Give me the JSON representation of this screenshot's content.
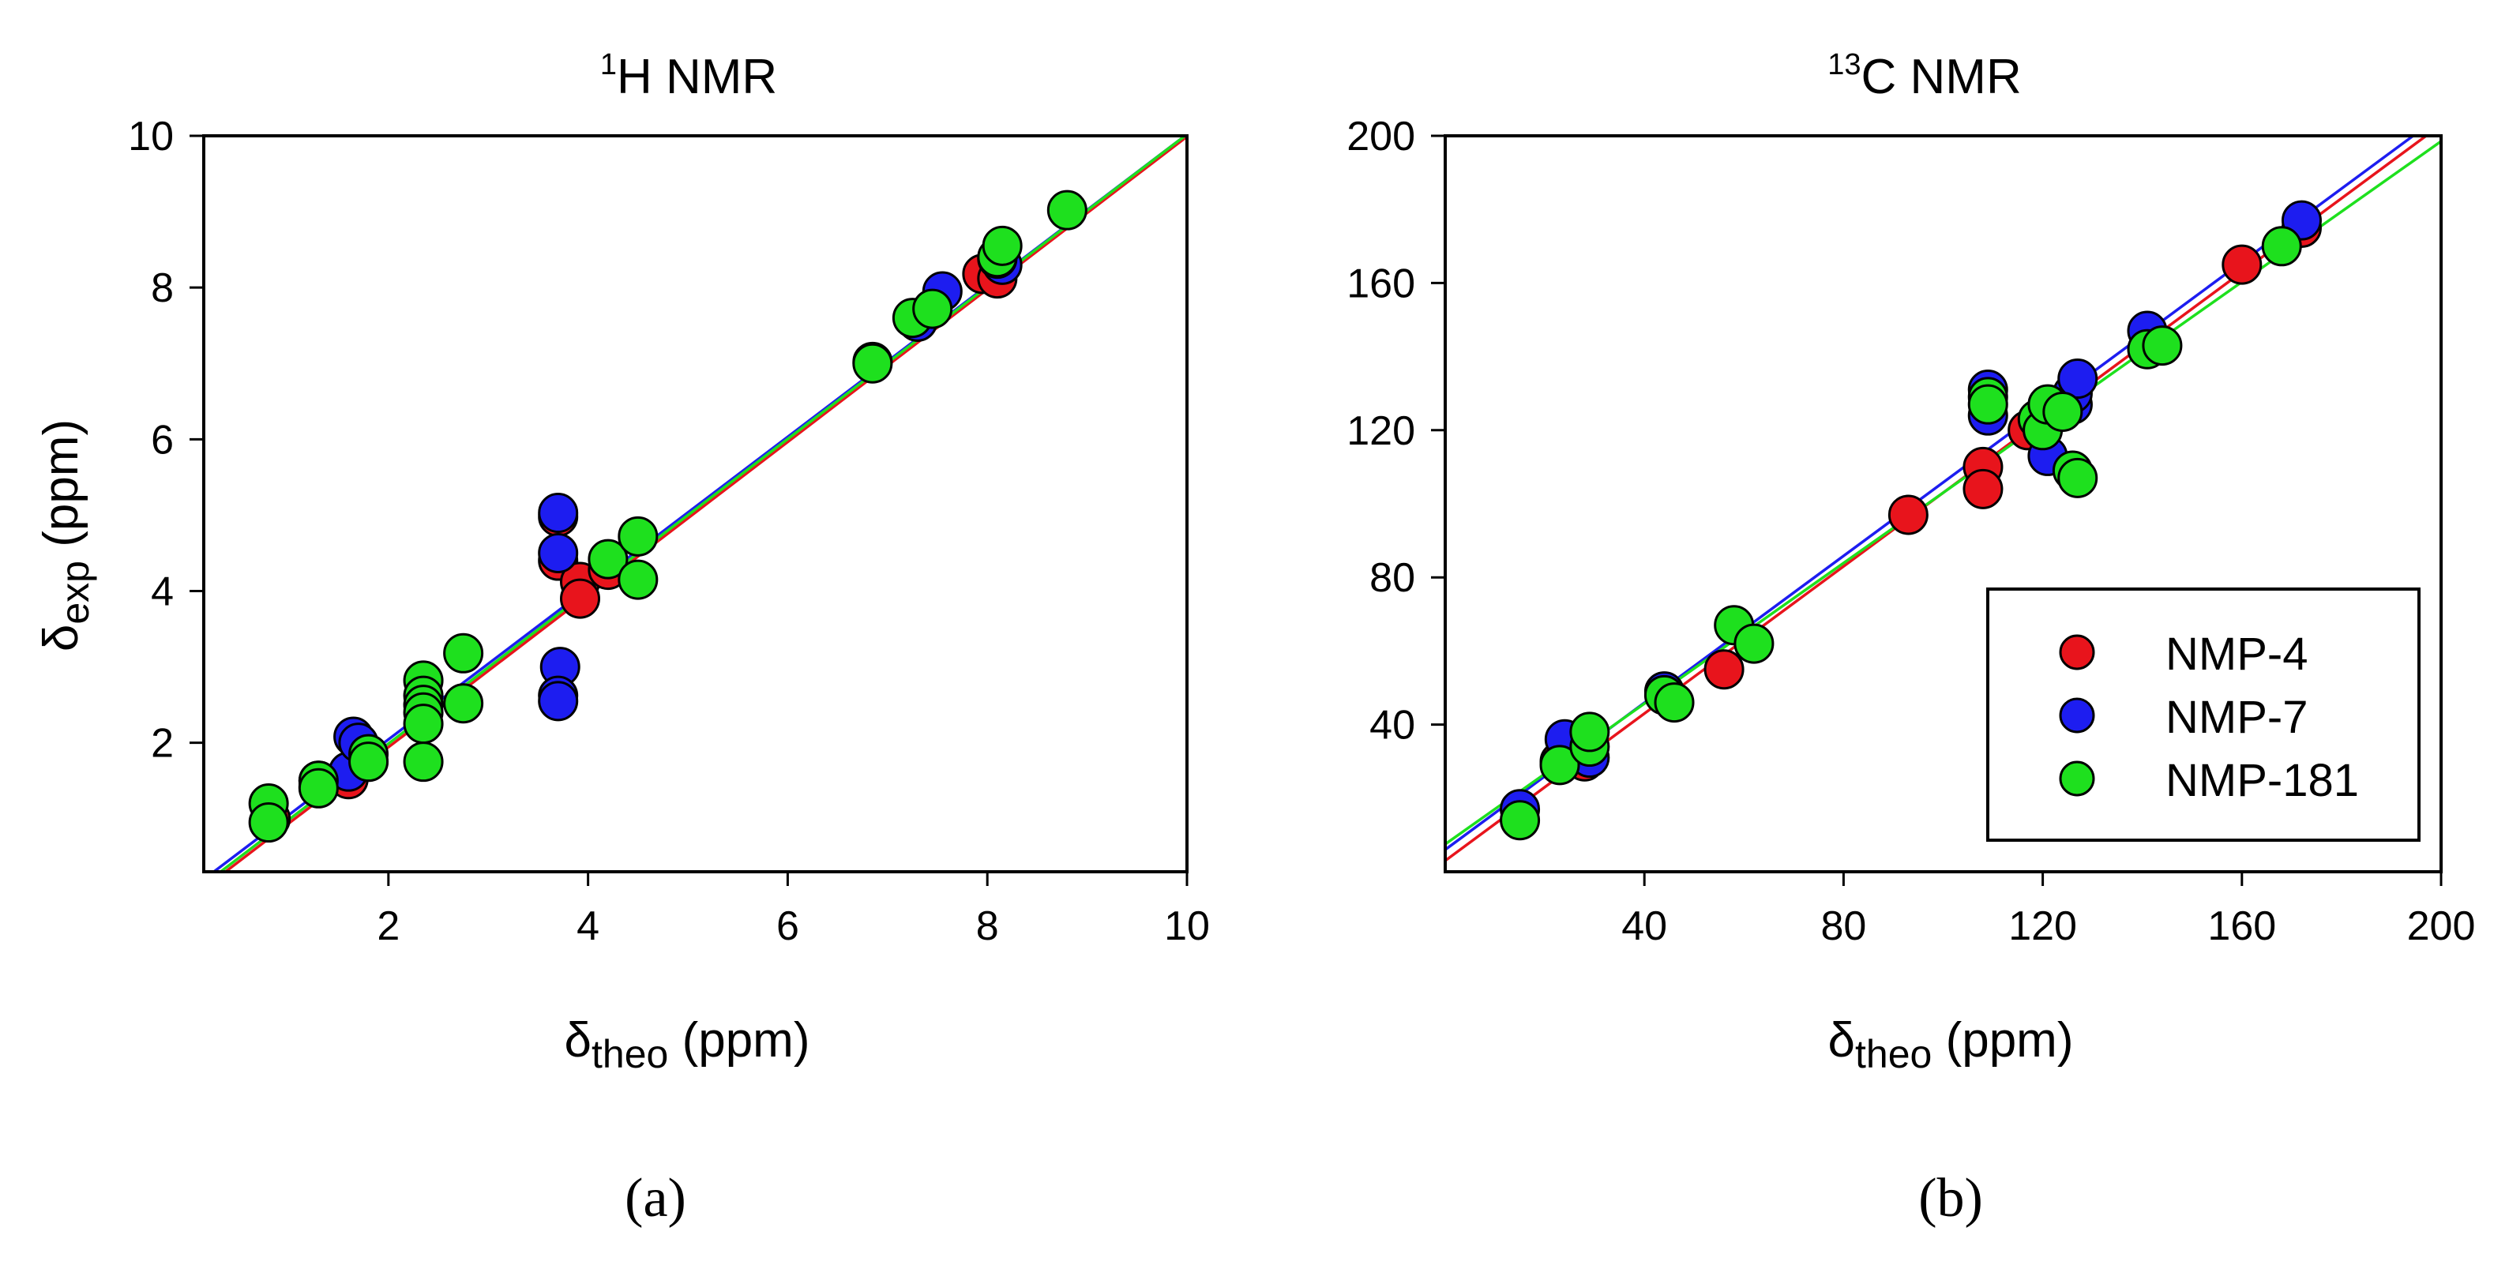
{
  "chart_data": [
    {
      "type": "scatter",
      "panel_label": "(a)",
      "title_sup": "1",
      "title_main": "H NMR",
      "ylabel_main": "δ",
      "ylabel_sub": "exp",
      "ylabel_unit": " (ppm)",
      "xlabel_main": "δ",
      "xlabel_sub": "theo",
      "xlabel_unit": " (ppm)",
      "xlim": [
        0.15,
        10
      ],
      "ylim": [
        0.3,
        10
      ],
      "xticks": [
        2,
        4,
        6,
        8,
        10
      ],
      "yticks": [
        2,
        4,
        6,
        8,
        10
      ],
      "grid": false,
      "fit_lines": [
        {
          "series": "NMP-4",
          "color": "#e8141c",
          "slope": 1.006,
          "intercept": -0.07
        },
        {
          "series": "NMP-7",
          "color": "#1d1df0",
          "slope": 0.997,
          "intercept": 0.05
        },
        {
          "series": "NMP-181",
          "color": "#1ee01e",
          "slope": 1.004,
          "intercept": -0.02
        }
      ],
      "series": [
        {
          "name": "NMP-4",
          "color": "#e8141c",
          "points": [
            [
              0.82,
              1.0
            ],
            [
              1.3,
              1.42
            ],
            [
              1.6,
              1.52
            ],
            [
              1.8,
              1.75
            ],
            [
              3.7,
              4.98
            ],
            [
              3.7,
              4.4
            ],
            [
              3.92,
              4.12
            ],
            [
              3.92,
              3.9
            ],
            [
              4.2,
              4.28
            ],
            [
              6.85,
              7.02
            ],
            [
              7.3,
              7.55
            ],
            [
              7.95,
              8.18
            ],
            [
              8.1,
              8.12
            ]
          ]
        },
        {
          "name": "NMP-7",
          "color": "#1d1df0",
          "points": [
            [
              1.3,
              1.5
            ],
            [
              1.6,
              1.62
            ],
            [
              1.65,
              2.08
            ],
            [
              1.7,
              2.0
            ],
            [
              3.7,
              5.03
            ],
            [
              3.7,
              4.5
            ],
            [
              3.72,
              3.0
            ],
            [
              3.7,
              2.62
            ],
            [
              3.7,
              2.55
            ],
            [
              7.3,
              7.55
            ],
            [
              7.55,
              7.95
            ],
            [
              8.15,
              8.3
            ],
            [
              8.1,
              8.38
            ]
          ]
        },
        {
          "name": "NMP-181",
          "color": "#1ee01e",
          "points": [
            [
              0.8,
              1.2
            ],
            [
              0.8,
              0.95
            ],
            [
              1.3,
              1.5
            ],
            [
              1.3,
              1.4
            ],
            [
              1.8,
              1.85
            ],
            [
              1.8,
              1.75
            ],
            [
              2.35,
              2.82
            ],
            [
              2.35,
              2.62
            ],
            [
              2.35,
              2.5
            ],
            [
              2.35,
              2.4
            ],
            [
              2.35,
              2.25
            ],
            [
              2.35,
              1.75
            ],
            [
              2.75,
              3.18
            ],
            [
              2.75,
              2.52
            ],
            [
              4.2,
              4.42
            ],
            [
              4.5,
              4.72
            ],
            [
              4.5,
              4.15
            ],
            [
              6.85,
              7.0
            ],
            [
              7.25,
              7.6
            ],
            [
              7.45,
              7.72
            ],
            [
              8.1,
              8.4
            ],
            [
              8.15,
              8.55
            ],
            [
              8.8,
              9.02
            ]
          ]
        }
      ]
    },
    {
      "type": "scatter",
      "panel_label": "(b)",
      "title_sup": "13",
      "title_main": "C NMR",
      "ylabel_main": "",
      "ylabel_sub": "",
      "ylabel_unit": "",
      "xlabel_main": "δ",
      "xlabel_sub": "theo",
      "xlabel_unit": " (ppm)",
      "xlim": [
        0,
        200
      ],
      "ylim": [
        0,
        200
      ],
      "xticks": [
        40,
        80,
        120,
        160,
        200
      ],
      "yticks": [
        40,
        80,
        120,
        160,
        200
      ],
      "grid": false,
      "legend_position": "bottom-right",
      "fit_lines": [
        {
          "series": "NMP-4",
          "color": "#e8141c",
          "slope": 1.0,
          "intercept": 3.0
        },
        {
          "series": "NMP-7",
          "color": "#1d1df0",
          "slope": 0.998,
          "intercept": 6.0
        },
        {
          "series": "NMP-181",
          "color": "#1ee01e",
          "slope": 0.955,
          "intercept": 7.5
        }
      ],
      "series": [
        {
          "name": "NMP-4",
          "color": "#e8141c",
          "points": [
            [
              23,
              30
            ],
            [
              28,
              30
            ],
            [
              56,
              55
            ],
            [
              93,
              97
            ],
            [
              108,
              110
            ],
            [
              108,
              104
            ],
            [
              117,
              120
            ],
            [
              160,
              165
            ],
            [
              172,
              175
            ]
          ]
        },
        {
          "name": "NMP-7",
          "color": "#1d1df0",
          "points": [
            [
              15,
              17
            ],
            [
              24,
              36
            ],
            [
              29,
              31
            ],
            [
              44,
              49
            ],
            [
              109,
              131
            ],
            [
              109,
              124
            ],
            [
              121,
              113
            ],
            [
              126,
              127
            ],
            [
              126,
              130
            ],
            [
              127,
              134
            ],
            [
              141,
              147
            ],
            [
              172,
              177
            ]
          ]
        },
        {
          "name": "NMP-181",
          "color": "#1ee01e",
          "points": [
            [
              15,
              14
            ],
            [
              23,
              29
            ],
            [
              29,
              34
            ],
            [
              29,
              38
            ],
            [
              44,
              48
            ],
            [
              46,
              46
            ],
            [
              58,
              67
            ],
            [
              62,
              62
            ],
            [
              109,
              129
            ],
            [
              109,
              127
            ],
            [
              119,
              123
            ],
            [
              120,
              120
            ],
            [
              121,
              127
            ],
            [
              124,
              125
            ],
            [
              126,
              109
            ],
            [
              127,
              107
            ],
            [
              141,
              142
            ],
            [
              144,
              143
            ],
            [
              168,
              170
            ]
          ]
        }
      ],
      "legend": [
        {
          "label": "NMP-4",
          "color": "#e8141c"
        },
        {
          "label": "NMP-7",
          "color": "#1d1df0"
        },
        {
          "label": "NMP-181",
          "color": "#1ee01e"
        }
      ]
    }
  ]
}
